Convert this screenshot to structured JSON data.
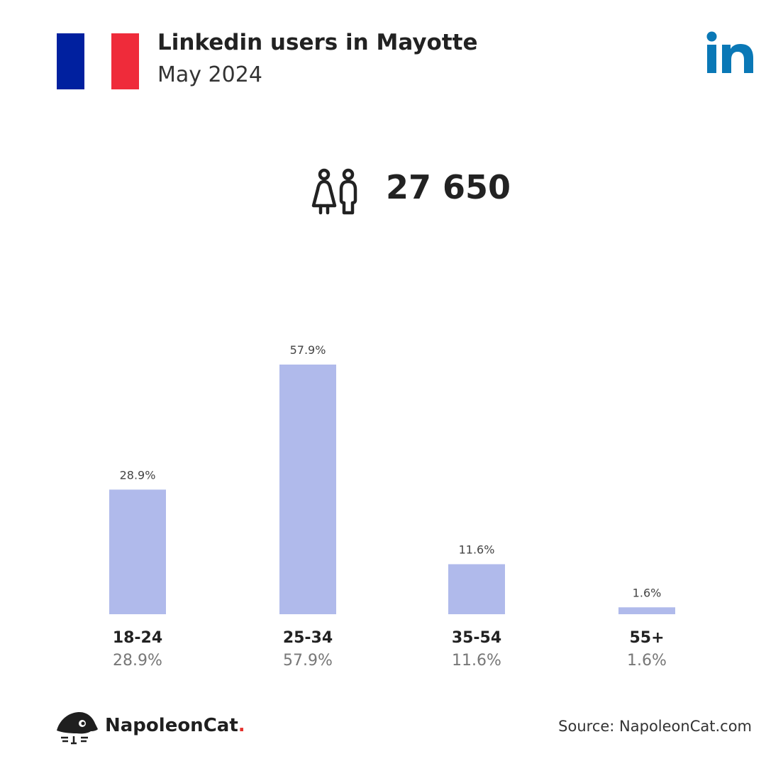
{
  "header": {
    "title": "Linkedin users in Mayotte",
    "subtitle": "May 2024",
    "flag_colors": [
      "#00209f",
      "#ffffff",
      "#ef2b3a"
    ],
    "brand_icon": "linkedin-logo-icon"
  },
  "summary": {
    "icon": "users-icon",
    "total_users": "27 650"
  },
  "chart_data": {
    "type": "bar",
    "categories": [
      "18-24",
      "25-34",
      "35-54",
      "55+"
    ],
    "values": [
      28.9,
      57.9,
      11.6,
      1.6
    ],
    "value_labels": [
      "28.9%",
      "57.9%",
      "11.6%",
      "1.6%"
    ],
    "title": "",
    "xlabel": "",
    "ylabel": "",
    "ylim": [
      0,
      57.9
    ],
    "grid": false,
    "legend": "none",
    "bar_color": "#b0baeb"
  },
  "footer": {
    "brand_name": "NapoleonCat",
    "brand_dot": ".",
    "brand_icon": "napoleoncat-logo-icon",
    "source_text": "Source: NapoleonCat.com"
  },
  "colors": {
    "linkedin_blue": "#0a78b6",
    "text_dark": "#222222",
    "text_muted": "#777777",
    "accent_red": "#e5322d"
  }
}
